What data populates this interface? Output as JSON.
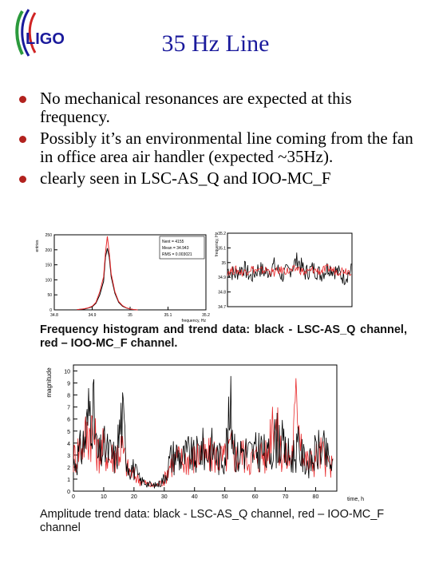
{
  "slide": {
    "title": "35 Hz Line",
    "logo_text": "LIGO",
    "bullets": [
      "No mechanical resonances are expected at this frequency.",
      "Possibly it’s an environmental line coming from the fan in office area air handler (expected ~35Hz).",
      "clearly seen in LSC-AS_Q and IOO-MC_F"
    ],
    "caption_top": "Frequency histogram and trend data: black - LSC-AS_Q channel, red – IOO-MC_F channel.",
    "caption_bottom": "Amplitude trend data: black - LSC-AS_Q channel, red – IOO-MC_F channel"
  },
  "colors": {
    "title": "#1a1a9c",
    "bullet": "#b2221e",
    "black_series": "#000000",
    "red_series": "#e8282a"
  },
  "chart_data": [
    {
      "type": "bar",
      "ylabel": "entries",
      "xlabel": "frequency, Hz",
      "x_ticks": [
        "34.8",
        "34.9",
        "35",
        "35.1",
        "35.2"
      ],
      "y_ticks": [
        "0",
        "50",
        "100",
        "150",
        "200",
        "250"
      ],
      "xlim": [
        34.8,
        35.2
      ],
      "ylim": [
        0,
        250
      ],
      "stats": {
        "entries_label": "Nent = 4155",
        "mean_label": "Mean = 34.943",
        "rms_label": "RMS = 0.003021"
      },
      "series": [
        {
          "values_x": [
            34.86,
            34.87,
            34.88,
            34.89,
            34.9,
            34.91,
            34.92,
            34.93,
            34.935,
            34.94,
            34.945,
            34.95,
            34.96,
            34.97,
            34.98,
            34.99,
            35.0,
            35.01,
            35.02
          ],
          "values_y": [
            1,
            2,
            3,
            6,
            10,
            22,
            50,
            95,
            175,
            205,
            175,
            110,
            55,
            25,
            12,
            6,
            3,
            1,
            0
          ]
        },
        {
          "values_x": [
            34.86,
            34.87,
            34.88,
            34.89,
            34.9,
            34.91,
            34.92,
            34.93,
            34.935,
            34.94,
            34.945,
            34.95,
            34.96,
            34.97,
            34.98,
            34.99,
            35.0,
            35.01,
            35.02
          ],
          "values_y": [
            1,
            2,
            4,
            7,
            12,
            25,
            60,
            110,
            190,
            245,
            190,
            120,
            60,
            28,
            14,
            7,
            3,
            1,
            0
          ]
        }
      ]
    },
    {
      "type": "line",
      "ylabel": "frequency, Hz",
      "y_ticks": [
        "34.7",
        "34.8",
        "34.9",
        "35",
        "35.1",
        "35.2"
      ],
      "ylim": [
        34.7,
        35.2
      ],
      "series": [
        {
          "name": "",
          "x": [
            0,
            5,
            10,
            15,
            20,
            25,
            30,
            35,
            40,
            45,
            50,
            55,
            60,
            65,
            70,
            75,
            80
          ],
          "y": [
            34.95,
            34.92,
            34.97,
            34.9,
            34.96,
            34.93,
            34.98,
            34.91,
            34.95,
            35.02,
            34.93,
            34.96,
            34.92,
            34.97,
            34.94,
            34.9,
            34.95
          ]
        },
        {
          "name": "",
          "x": [
            0,
            5,
            10,
            15,
            20,
            25,
            30,
            35,
            40,
            45,
            50,
            55,
            60,
            65,
            70,
            75,
            80
          ],
          "y": [
            34.94,
            34.95,
            34.93,
            34.96,
            34.94,
            34.95,
            34.93,
            34.95,
            34.94,
            34.96,
            34.93,
            34.95,
            34.94,
            34.96,
            34.94,
            34.95,
            34.94
          ]
        }
      ]
    },
    {
      "type": "line",
      "ylabel": "magnitude",
      "xlabel": "time, h",
      "x_ticks": [
        "0",
        "10",
        "20",
        "30",
        "40",
        "50",
        "60",
        "70",
        "80"
      ],
      "y_ticks": [
        "0",
        "1",
        "2",
        "3",
        "4",
        "5",
        "6",
        "7",
        "8",
        "9",
        "10"
      ],
      "xlim": [
        0,
        87
      ],
      "ylim": [
        0,
        10.5
      ],
      "series": [
        {
          "name": "",
          "x": [
            0,
            2,
            4,
            6,
            8,
            10,
            12,
            14,
            16,
            18,
            20,
            22,
            24,
            26,
            28,
            30,
            32,
            34,
            36,
            38,
            40,
            42,
            44,
            46,
            48,
            50,
            52,
            54,
            56,
            58,
            60,
            62,
            64,
            66,
            68,
            70,
            72,
            74,
            76,
            78,
            80,
            82,
            84,
            86
          ],
          "y": [
            2.5,
            3.5,
            5,
            9,
            3,
            4,
            3.5,
            3,
            7,
            2.5,
            2,
            1,
            0.8,
            0.5,
            0.6,
            1.2,
            3,
            3.5,
            3,
            3.5,
            3,
            4,
            3.5,
            4,
            3,
            3.5,
            7,
            3,
            4,
            3.5,
            3.5,
            4,
            3,
            4.5,
            5,
            3.5,
            3,
            4,
            3,
            2.5,
            3.5,
            4,
            3,
            2
          ]
        },
        {
          "name": "",
          "x": [
            0,
            2,
            4,
            6,
            8,
            10,
            12,
            14,
            16,
            18,
            20,
            22,
            24,
            26,
            28,
            30,
            32,
            34,
            36,
            38,
            40,
            42,
            44,
            46,
            48,
            50,
            52,
            54,
            56,
            58,
            60,
            62,
            64,
            66,
            68,
            70,
            72,
            74,
            76,
            78,
            80,
            82,
            84,
            86
          ],
          "y": [
            3,
            4,
            5,
            6,
            3.5,
            4,
            3,
            3.5,
            4,
            2,
            1.5,
            1,
            0.7,
            0.5,
            0.6,
            1,
            2.5,
            3,
            2.8,
            3,
            3,
            3.5,
            3,
            3.5,
            3,
            3,
            4,
            3,
            3.5,
            3,
            3,
            3.5,
            3,
            8,
            4,
            3,
            3,
            9,
            3,
            2.5,
            3,
            3.5,
            2.5,
            2
          ]
        }
      ]
    }
  ]
}
